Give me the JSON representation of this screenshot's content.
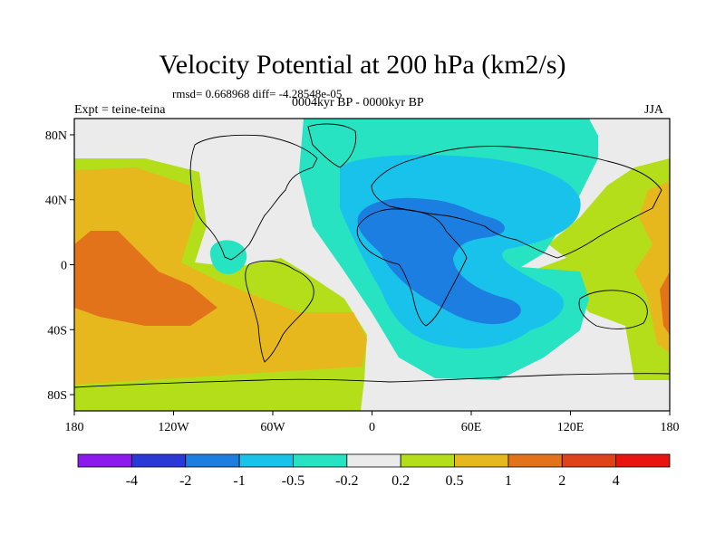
{
  "chart_data": {
    "type": "heatmap",
    "title": "Velocity Potential at 200 hPa (km2/s)",
    "subtitle_stats": "rmsd= 0.668968 diff= -4.28548e-05",
    "subtitle_period": "0004kyr BP - 0000kyr BP",
    "left_label": "Expt = teine-teina",
    "right_label": "JJA",
    "xlim": [
      -180,
      180
    ],
    "ylim": [
      -90,
      90
    ],
    "x_ticks": [
      {
        "value": -180,
        "label": "180"
      },
      {
        "value": -120,
        "label": "120W"
      },
      {
        "value": -60,
        "label": "60W"
      },
      {
        "value": 0,
        "label": "0"
      },
      {
        "value": 60,
        "label": "60E"
      },
      {
        "value": 120,
        "label": "120E"
      },
      {
        "value": 180,
        "label": "180"
      }
    ],
    "y_ticks": [
      {
        "value": 80,
        "label": "80N"
      },
      {
        "value": 40,
        "label": "40N"
      },
      {
        "value": 0,
        "label": "0"
      },
      {
        "value": -40,
        "label": "40S"
      },
      {
        "value": -80,
        "label": "80S"
      }
    ],
    "levels": [
      -4,
      -2,
      -1,
      -0.5,
      -0.2,
      0.2,
      0.5,
      1,
      2,
      4
    ],
    "colorbar_labels": [
      "-4",
      "-2",
      "-1",
      "-0.5",
      "-0.2",
      "0.2",
      "0.5",
      "1",
      "2",
      "4"
    ],
    "colors": [
      "#8c1aef",
      "#2a38d6",
      "#1c7ee0",
      "#19c2ea",
      "#28e3c2",
      "#ebebeb",
      "#b4de1a",
      "#e6b81e",
      "#e3731a",
      "#de4418",
      "#e8140f"
    ],
    "regions": [
      {
        "name": "negative anomaly over Africa / Eurasia",
        "class": "-1 to -0.5",
        "center": [
          35,
          20
        ],
        "extent_lon": [
          -40,
          100
        ],
        "extent_lat": [
          -55,
          75
        ]
      },
      {
        "name": "core minimum over Africa / Arabia",
        "class": "-2 to -1",
        "center": [
          30,
          15
        ],
        "extent_lon": [
          0,
          70
        ],
        "extent_lat": [
          -30,
          45
        ]
      },
      {
        "name": "positive anomaly over central Pacific",
        "class": "1 to 2",
        "center": [
          -145,
          -10
        ],
        "extent_lon": [
          -180,
          -110
        ],
        "extent_lat": [
          -35,
          20
        ]
      },
      {
        "name": "small negative cell over Central America",
        "class": "-0.5 to -0.2",
        "center": [
          -85,
          8
        ]
      }
    ]
  }
}
